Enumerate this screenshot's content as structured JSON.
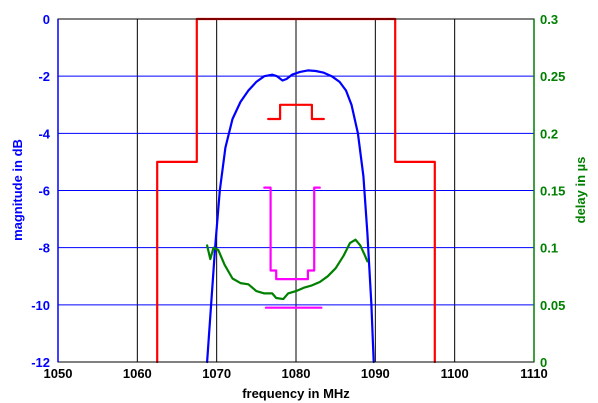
{
  "chart_data": {
    "type": "line",
    "xlabel": "frequency in MHz",
    "ylabel": "magnitude in dB",
    "y2label": "delay in µs",
    "xlim": [
      1050,
      1110
    ],
    "ylim": [
      -12,
      0
    ],
    "y2lim": [
      0,
      0.3
    ],
    "x_ticks": [
      1050,
      1060,
      1070,
      1080,
      1090,
      1100,
      1110
    ],
    "y_ticks": [
      0,
      -2,
      -4,
      -6,
      -8,
      -10,
      -12
    ],
    "y2_ticks": [
      0.3,
      0.25,
      0.2,
      0.15,
      0.1,
      0.05,
      0
    ],
    "grid": true,
    "colors": {
      "x_grid": "#000000",
      "y_grid": "#0000ff",
      "left_axis": "#0000ff",
      "right_axis": "#008000"
    },
    "series": [
      {
        "axis": "left",
        "color": "#ff0000",
        "points": [
          [
            1062.5,
            -12
          ],
          [
            1062.5,
            -5
          ],
          [
            1067.5,
            -5
          ],
          [
            1067.5,
            0
          ],
          [
            1092.5,
            0
          ],
          [
            1092.5,
            -5
          ],
          [
            1097.5,
            -5
          ],
          [
            1097.5,
            -12
          ]
        ]
      },
      {
        "axis": "left",
        "color": "#0000ff",
        "points": [
          [
            1068.8,
            -12
          ],
          [
            1069.3,
            -10
          ],
          [
            1069.8,
            -8
          ],
          [
            1070.4,
            -6
          ],
          [
            1071.1,
            -4.5
          ],
          [
            1072,
            -3.5
          ],
          [
            1073,
            -2.9
          ],
          [
            1074,
            -2.5
          ],
          [
            1075,
            -2.2
          ],
          [
            1076,
            -2.0
          ],
          [
            1077,
            -1.95
          ],
          [
            1077.6,
            -2.0
          ],
          [
            1078.3,
            -2.15
          ],
          [
            1078.8,
            -2.1
          ],
          [
            1079.5,
            -1.95
          ],
          [
            1080.5,
            -1.85
          ],
          [
            1081.5,
            -1.8
          ],
          [
            1082.5,
            -1.82
          ],
          [
            1083.5,
            -1.88
          ],
          [
            1084.5,
            -2.0
          ],
          [
            1085.5,
            -2.2
          ],
          [
            1086.3,
            -2.5
          ],
          [
            1087,
            -3.0
          ],
          [
            1087.8,
            -4.0
          ],
          [
            1088.5,
            -5.5
          ],
          [
            1089,
            -7.5
          ],
          [
            1089.5,
            -10
          ],
          [
            1089.8,
            -12
          ]
        ]
      },
      {
        "axis": "left",
        "color": "#ff0000",
        "points": [
          [
            1076.5,
            -3.5
          ],
          [
            1078,
            -3.5
          ],
          [
            1078,
            -3.0
          ],
          [
            1080.8,
            -3.0
          ],
          [
            1080.8,
            -3.0
          ],
          [
            1082,
            -3.0
          ],
          [
            1082,
            -3.5
          ],
          [
            1083.5,
            -3.5
          ]
        ]
      },
      {
        "axis": "left",
        "color": "#ff00ff",
        "points": [
          [
            1076,
            -5.9
          ],
          [
            1076.8,
            -5.9
          ],
          [
            1076.8,
            -8.8
          ],
          [
            1077.5,
            -8.8
          ],
          [
            1077.5,
            -9.1
          ],
          [
            1081.5,
            -9.1
          ],
          [
            1081.5,
            -8.8
          ],
          [
            1082.3,
            -8.8
          ],
          [
            1082.3,
            -5.9
          ],
          [
            1083,
            -5.9
          ]
        ]
      },
      {
        "axis": "left",
        "color": "#ff00ff",
        "points": [
          [
            1076.2,
            -10.1
          ],
          [
            1083.2,
            -10.1
          ]
        ]
      },
      {
        "axis": "right",
        "color": "#008000",
        "points": [
          [
            1068.8,
            0.102
          ],
          [
            1069.2,
            0.09
          ],
          [
            1069.6,
            0.1
          ],
          [
            1070.2,
            0.098
          ],
          [
            1071,
            0.085
          ],
          [
            1072,
            0.073
          ],
          [
            1073,
            0.069
          ],
          [
            1074,
            0.068
          ],
          [
            1075,
            0.062
          ],
          [
            1076,
            0.06
          ],
          [
            1077,
            0.06
          ],
          [
            1077.5,
            0.056
          ],
          [
            1078.4,
            0.055
          ],
          [
            1079,
            0.06
          ],
          [
            1080,
            0.062
          ],
          [
            1081,
            0.065
          ],
          [
            1082,
            0.067
          ],
          [
            1083,
            0.07
          ],
          [
            1084,
            0.075
          ],
          [
            1085,
            0.082
          ],
          [
            1086,
            0.093
          ],
          [
            1086.8,
            0.104
          ],
          [
            1087.5,
            0.107
          ],
          [
            1088.1,
            0.102
          ],
          [
            1088.7,
            0.093
          ],
          [
            1089,
            0.088
          ]
        ]
      }
    ]
  }
}
